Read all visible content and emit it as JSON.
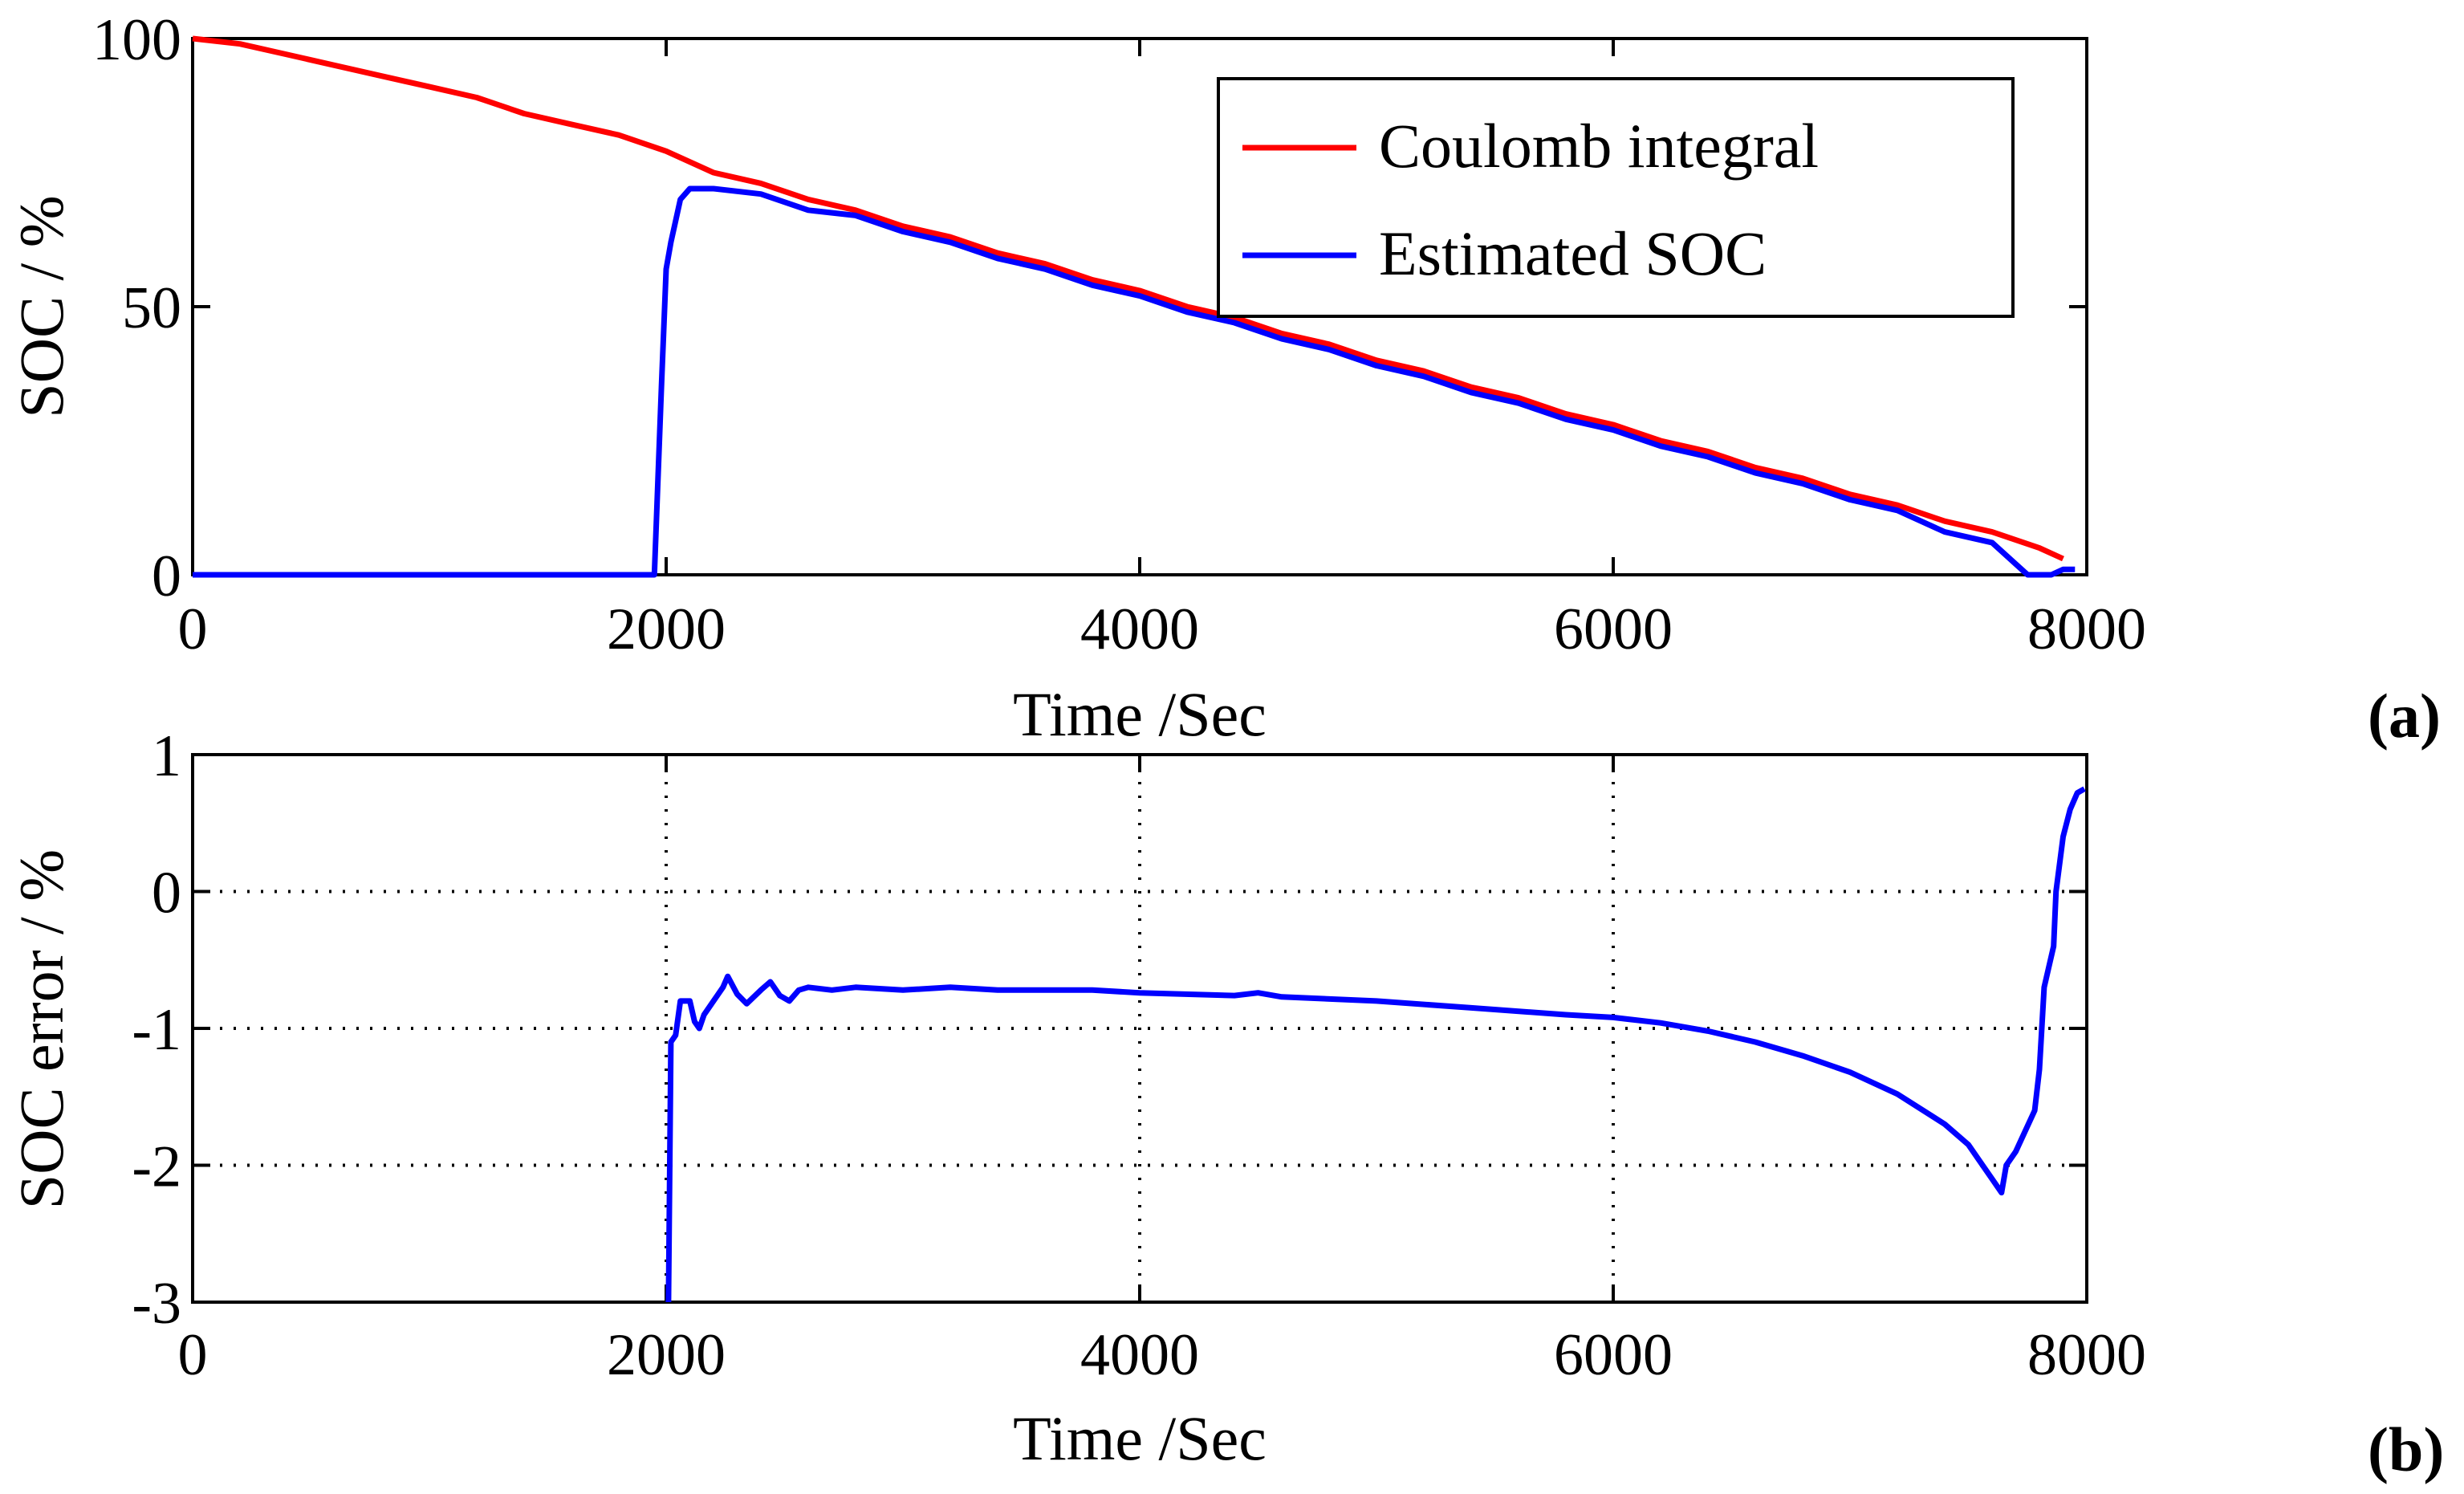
{
  "chart_data": [
    {
      "type": "line",
      "panel": "(a)",
      "xlabel": "Time /Sec",
      "ylabel": "SOC / %",
      "xlim": [
        0,
        8000
      ],
      "ylim": [
        0,
        100
      ],
      "xticks": [
        0,
        2000,
        4000,
        6000,
        8000
      ],
      "yticks": [
        0,
        50,
        100
      ],
      "grid": false,
      "legend": "top-right",
      "series": [
        {
          "name": "Coulomb integral",
          "color": "#ff0000",
          "points": [
            [
              0,
              100
            ],
            [
              200,
              99
            ],
            [
              400,
              97
            ],
            [
              600,
              95
            ],
            [
              800,
              93
            ],
            [
              1000,
              91
            ],
            [
              1200,
              89
            ],
            [
              1400,
              86
            ],
            [
              1600,
              84
            ],
            [
              1800,
              82
            ],
            [
              2000,
              79
            ],
            [
              2200,
              75
            ],
            [
              2400,
              73
            ],
            [
              2600,
              70
            ],
            [
              2800,
              68
            ],
            [
              3000,
              65
            ],
            [
              3200,
              63
            ],
            [
              3400,
              60
            ],
            [
              3600,
              58
            ],
            [
              3800,
              55
            ],
            [
              4000,
              53
            ],
            [
              4200,
              50
            ],
            [
              4400,
              48
            ],
            [
              4600,
              45
            ],
            [
              4800,
              43
            ],
            [
              5000,
              40
            ],
            [
              5200,
              38
            ],
            [
              5400,
              35
            ],
            [
              5600,
              33
            ],
            [
              5800,
              30
            ],
            [
              6000,
              28
            ],
            [
              6200,
              25
            ],
            [
              6400,
              23
            ],
            [
              6600,
              20
            ],
            [
              6800,
              18
            ],
            [
              7000,
              15
            ],
            [
              7200,
              13
            ],
            [
              7400,
              10
            ],
            [
              7600,
              8
            ],
            [
              7800,
              5
            ],
            [
              7900,
              3
            ]
          ]
        },
        {
          "name": "Estimated SOC",
          "color": "#0000ff",
          "points": [
            [
              0,
              0
            ],
            [
              1950,
              0
            ],
            [
              1980,
              35
            ],
            [
              2000,
              57
            ],
            [
              2020,
              62
            ],
            [
              2040,
              66
            ],
            [
              2060,
              70
            ],
            [
              2100,
              72
            ],
            [
              2200,
              72
            ],
            [
              2400,
              71
            ],
            [
              2600,
              68
            ],
            [
              2800,
              67
            ],
            [
              3000,
              64
            ],
            [
              3200,
              62
            ],
            [
              3400,
              59
            ],
            [
              3600,
              57
            ],
            [
              3800,
              54
            ],
            [
              4000,
              52
            ],
            [
              4200,
              49
            ],
            [
              4400,
              47
            ],
            [
              4600,
              44
            ],
            [
              4800,
              42
            ],
            [
              5000,
              39
            ],
            [
              5200,
              37
            ],
            [
              5400,
              34
            ],
            [
              5600,
              32
            ],
            [
              5800,
              29
            ],
            [
              6000,
              27
            ],
            [
              6200,
              24
            ],
            [
              6400,
              22
            ],
            [
              6600,
              19
            ],
            [
              6800,
              17
            ],
            [
              7000,
              14
            ],
            [
              7200,
              12
            ],
            [
              7400,
              8
            ],
            [
              7600,
              6
            ],
            [
              7700,
              2
            ],
            [
              7750,
              0
            ],
            [
              7850,
              0
            ],
            [
              7900,
              1
            ],
            [
              7950,
              1
            ]
          ]
        }
      ]
    },
    {
      "type": "line",
      "panel": "(b)",
      "xlabel": "Time /Sec",
      "ylabel": "SOC error / %",
      "xlim": [
        0,
        8000
      ],
      "ylim": [
        -3,
        1
      ],
      "xticks": [
        0,
        2000,
        4000,
        6000,
        8000
      ],
      "yticks": [
        -3,
        -2,
        -1,
        0,
        1
      ],
      "grid": true,
      "series": [
        {
          "name": "SOC error",
          "color": "#0000ff",
          "points": [
            [
              2010,
              -3
            ],
            [
              2020,
              -1.1
            ],
            [
              2040,
              -1.05
            ],
            [
              2060,
              -0.8
            ],
            [
              2080,
              -0.8
            ],
            [
              2100,
              -0.8
            ],
            [
              2120,
              -0.95
            ],
            [
              2140,
              -1.0
            ],
            [
              2160,
              -0.9
            ],
            [
              2200,
              -0.8
            ],
            [
              2240,
              -0.7
            ],
            [
              2260,
              -0.62
            ],
            [
              2300,
              -0.75
            ],
            [
              2340,
              -0.82
            ],
            [
              2400,
              -0.72
            ],
            [
              2440,
              -0.66
            ],
            [
              2480,
              -0.76
            ],
            [
              2520,
              -0.8
            ],
            [
              2560,
              -0.72
            ],
            [
              2600,
              -0.7
            ],
            [
              2700,
              -0.72
            ],
            [
              2800,
              -0.7
            ],
            [
              3000,
              -0.72
            ],
            [
              3200,
              -0.7
            ],
            [
              3400,
              -0.72
            ],
            [
              3600,
              -0.72
            ],
            [
              3800,
              -0.72
            ],
            [
              4000,
              -0.74
            ],
            [
              4400,
              -0.76
            ],
            [
              4500,
              -0.74
            ],
            [
              4600,
              -0.77
            ],
            [
              5000,
              -0.8
            ],
            [
              5400,
              -0.85
            ],
            [
              5800,
              -0.9
            ],
            [
              6000,
              -0.92
            ],
            [
              6200,
              -0.96
            ],
            [
              6400,
              -1.02
            ],
            [
              6600,
              -1.1
            ],
            [
              6800,
              -1.2
            ],
            [
              7000,
              -1.32
            ],
            [
              7200,
              -1.48
            ],
            [
              7400,
              -1.7
            ],
            [
              7500,
              -1.85
            ],
            [
              7560,
              -2.0
            ],
            [
              7600,
              -2.1
            ],
            [
              7640,
              -2.2
            ],
            [
              7660,
              -2.0
            ],
            [
              7700,
              -1.9
            ],
            [
              7740,
              -1.75
            ],
            [
              7780,
              -1.6
            ],
            [
              7800,
              -1.3
            ],
            [
              7820,
              -0.7
            ],
            [
              7860,
              -0.4
            ],
            [
              7870,
              0.0
            ],
            [
              7900,
              0.4
            ],
            [
              7930,
              0.6
            ],
            [
              7960,
              0.72
            ],
            [
              7990,
              0.75
            ]
          ]
        }
      ]
    }
  ]
}
